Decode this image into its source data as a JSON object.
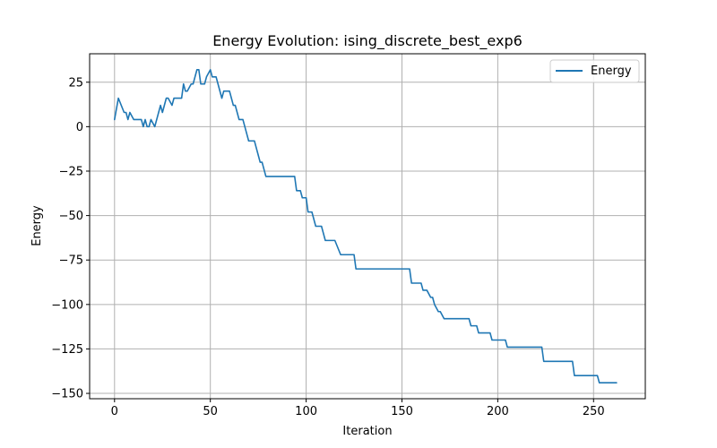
{
  "chart_data": {
    "type": "line",
    "title": "Energy Evolution: ising_discrete_best_exp6",
    "xlabel": "Iteration",
    "ylabel": "Energy",
    "xlim": [
      -13,
      277
    ],
    "ylim": [
      -153,
      41
    ],
    "xticks": [
      0,
      50,
      100,
      150,
      200,
      250
    ],
    "yticks": [
      25,
      0,
      -25,
      -50,
      -75,
      -100,
      -125,
      -150
    ],
    "grid": true,
    "legend_position": "top-right",
    "series": [
      {
        "name": "Energy",
        "color": "#1f77b4",
        "x": [
          0,
          2,
          5,
          6,
          7,
          8,
          10,
          14,
          15,
          16,
          17,
          18,
          19,
          21,
          23,
          24,
          25,
          27,
          28,
          30,
          31,
          35,
          36,
          37,
          38,
          40,
          41,
          43,
          44,
          45,
          47,
          48,
          50,
          51,
          53,
          54,
          56,
          57,
          60,
          61,
          62,
          63,
          64,
          65,
          66,
          67,
          69,
          70,
          73,
          74,
          75,
          76,
          77,
          79,
          94,
          95,
          97,
          98,
          100,
          101,
          103,
          105,
          108,
          110,
          115,
          118,
          125,
          126,
          154,
          155,
          160,
          161,
          163,
          165,
          166,
          167,
          169,
          170,
          172,
          173,
          185,
          186,
          189,
          190,
          196,
          197,
          204,
          205,
          223,
          224,
          239,
          240,
          252,
          253,
          262
        ],
        "y": [
          4,
          16,
          8,
          8,
          4,
          8,
          4,
          4,
          0,
          4,
          0,
          0,
          4,
          0,
          8,
          12,
          8,
          16,
          16,
          12,
          16,
          16,
          24,
          20,
          20,
          24,
          24,
          32,
          32,
          24,
          24,
          28,
          32,
          28,
          28,
          24,
          16,
          20,
          20,
          16,
          12,
          12,
          8,
          4,
          4,
          4,
          -4,
          -8,
          -8,
          -12,
          -16,
          -20,
          -20,
          -28,
          -28,
          -36,
          -36,
          -40,
          -40,
          -48,
          -48,
          -56,
          -56,
          -64,
          -64,
          -72,
          -72,
          -80,
          -80,
          -88,
          -88,
          -92,
          -92,
          -96,
          -96,
          -100,
          -104,
          -104,
          -108,
          -108,
          -108,
          -112,
          -112,
          -116,
          -116,
          -120,
          -120,
          -124,
          -124,
          -132,
          -132,
          -140,
          -140,
          -144,
          -144
        ]
      }
    ]
  }
}
